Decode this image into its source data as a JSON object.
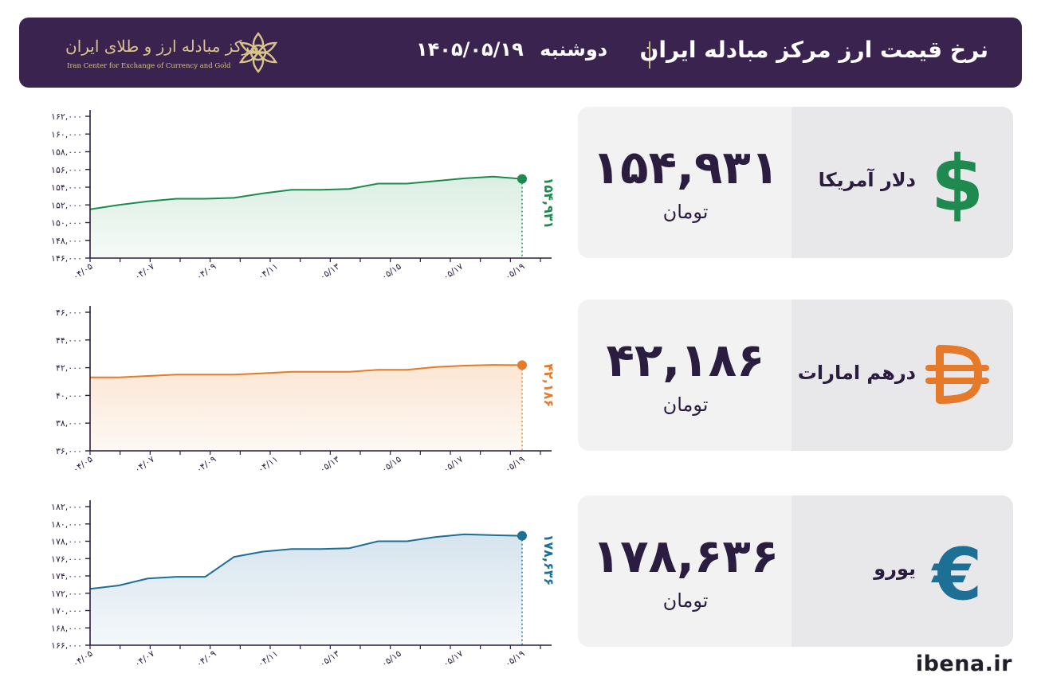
{
  "header": {
    "title": "نرخ قیمت ارز مرکز مبادله ایران",
    "day": "دوشنبه",
    "date": "۱۴۰۵/۰۵/۱۹",
    "logo_fa": "مرکز مبادله ارز و طلای ایران",
    "logo_en": "Iran Center for Exchange of Currency and Gold",
    "logo_icon": "star-knot-icon"
  },
  "currencies": [
    {
      "name": "دلار آمریکا",
      "price": "۱۵۴,۹۳۱",
      "unit": "تومان",
      "icon": "dollar-icon",
      "color": "#1e8a4f"
    },
    {
      "name": "درهم امارات",
      "price": "۴۲,۱۸۶",
      "unit": "تومان",
      "icon": "dirham-icon",
      "color": "#e57a2a"
    },
    {
      "name": "یورو",
      "price": "۱۷۸,۶۳۶",
      "unit": "تومان",
      "icon": "euro-icon",
      "color": "#1e6f95"
    }
  ],
  "chart_data": [
    {
      "type": "area",
      "series_color": "#1e8a4f",
      "fill_color": "#dbeee2",
      "x_ticks": [
        "۰۴/۰۵",
        "۰۴/۰۷",
        "۰۴/۰۹",
        "۰۴/۱۱",
        "۰۵/۱۳",
        "۰۵/۱۵",
        "۰۵/۱۷",
        "۰۵/۱۹"
      ],
      "ylim": [
        146000,
        162000
      ],
      "y_ticks": [
        146000,
        148000,
        150000,
        152000,
        154000,
        156000,
        158000,
        160000,
        162000
      ],
      "y_tick_labels": [
        "۱۴۶,۰۰۰",
        "۱۴۸,۰۰۰",
        "۱۵۰,۰۰۰",
        "۱۵۲,۰۰۰",
        "۱۵۴,۰۰۰",
        "۱۵۶,۰۰۰",
        "۱۵۸,۰۰۰",
        "۱۶۰,۰۰۰",
        "۱۶۲,۰۰۰"
      ],
      "values": [
        151500,
        152000,
        152400,
        152700,
        152700,
        152800,
        153300,
        153700,
        153700,
        153800,
        154400,
        154400,
        154700,
        155000,
        155200,
        154931
      ],
      "last_label": "۱۵۴,۹۳۱"
    },
    {
      "type": "area",
      "series_color": "#e57a2a",
      "fill_color": "#fbe6d3",
      "x_ticks": [
        "۰۴/۰۵",
        "۰۴/۰۷",
        "۰۴/۰۹",
        "۰۴/۱۱",
        "۰۵/۱۳",
        "۰۵/۱۵",
        "۰۵/۱۷",
        "۰۵/۱۹"
      ],
      "ylim": [
        36000,
        46000
      ],
      "y_ticks": [
        36000,
        38000,
        40000,
        42000,
        44000,
        46000
      ],
      "y_tick_labels": [
        "۳۶,۰۰۰",
        "۳۸,۰۰۰",
        "۴۰,۰۰۰",
        "۴۲,۰۰۰",
        "۴۴,۰۰۰",
        "۴۶,۰۰۰"
      ],
      "values": [
        41300,
        41300,
        41400,
        41500,
        41500,
        41500,
        41600,
        41700,
        41700,
        41700,
        41850,
        41850,
        42050,
        42150,
        42200,
        42186
      ],
      "last_label": "۴۲,۱۸۶"
    },
    {
      "type": "area",
      "series_color": "#1e6f95",
      "fill_color": "#d6e4ee",
      "x_ticks": [
        "۰۴/۰۵",
        "۰۴/۰۷",
        "۰۴/۰۹",
        "۰۴/۱۱",
        "۰۵/۱۳",
        "۰۵/۱۵",
        "۰۵/۱۷",
        "۰۵/۱۹"
      ],
      "ylim": [
        166000,
        182000
      ],
      "y_ticks": [
        166000,
        168000,
        170000,
        172000,
        174000,
        176000,
        178000,
        180000,
        182000
      ],
      "y_tick_labels": [
        "۱۶۶,۰۰۰",
        "۱۶۸,۰۰۰",
        "۱۷۰,۰۰۰",
        "۱۷۲,۰۰۰",
        "۱۷۴,۰۰۰",
        "۱۷۶,۰۰۰",
        "۱۷۸,۰۰۰",
        "۱۸۰,۰۰۰",
        "۱۸۲,۰۰۰"
      ],
      "values": [
        172500,
        172900,
        173700,
        173900,
        173900,
        176200,
        176800,
        177100,
        177100,
        177200,
        178000,
        178000,
        178500,
        178800,
        178700,
        178636
      ],
      "last_label": "۱۷۸,۶۳۶"
    }
  ],
  "footer": {
    "site": "ibena.ir"
  }
}
